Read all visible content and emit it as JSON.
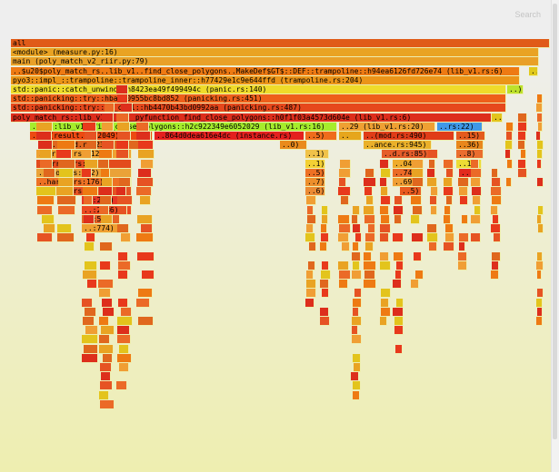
{
  "search": {
    "label": "Search"
  },
  "frames": [
    {
      "t": "all",
      "c": "#e05b18"
    },
    {
      "t": "<module> (measure.py:16)",
      "c": "#e9a323"
    },
    {
      "t": "main (poly_match_v2_riir.py:79)",
      "c": "#e9a028"
    },
    {
      "t": "..$u20$poly_match_rs..lib_v1..find_close_polygons..MakeDef$GT$::DEF::trampoline::h94ea6126fd726e74 (lib_v1.rs:6)",
      "c": "#ee7a13"
    },
    {
      "t": "..",
      "c": "#e1c91c"
    },
    {
      "t": "pyo3::impl_::trampoline::trampoline_inner::h77429e1c9e644ffd (trampoline.rs:204)",
      "c": "#eb9418"
    },
    {
      "t": "std::panic::catch_unwind::h8423ea49f499494c (panic.rs:140)",
      "c": "#efdb2a"
    },
    {
      "t": "..)",
      "c": "#bde12c"
    },
    {
      "t": "std::panicking::try::hba7c0955bc8bd852 (panicking.rs:451)",
      "c": "#ee5f1a"
    },
    {
      "t": "std::panicking::try::do_call::hb4470b43bd0992aa (panicking.rs:487)",
      "c": "#e6481c"
    },
    {
      "t": "poly_match_rs::lib_v1::_::__pyfunction_find_close_polygons::h0f1f03a4573d604e (lib_v1.rs:6)",
      "c": "#dd2e1c"
    },
    {
      "t": "..",
      "c": "#e3c41c"
    },
    {
      "t": "..rs::lib_v1::find_close_polygons::h2c922349e6052029 (lib_v1.rs:16)",
      "c": "#a6ec2c"
    },
    {
      "t": "..29 (lib_v1.rs:20)",
      "c": "#efa033"
    },
    {
      "t": "..rs:22)",
      "c": "#3f98e8"
    },
    {
      "t": "..a (result.rs:2049)",
      "c": "#ed4a12"
    },
    {
      "t": "..864d0dea616e4dc (instance.rs)",
      "c": "#e4201e"
    },
    {
      "t": "..5)",
      "c": "#ef6c1c"
    },
    {
      "t": "..",
      "c": "#e6a61c"
    },
    {
      "t": "..(mod.rs:490)",
      "c": "#e03c18"
    },
    {
      "t": "..15)",
      "c": "#e45a1d"
    },
    {
      "t": "..(mod.rs:232)",
      "c": "#e0671e"
    },
    {
      "t": "..0)",
      "c": "#e98a1c"
    },
    {
      "t": "..ance.rs:945)",
      "c": "#eab02a"
    },
    {
      "t": "..36)",
      "c": "#e8861c"
    },
    {
      "t": "..array.rs:912)",
      "c": "#efa132"
    },
    {
      "t": "..1)",
      "c": "#f0c24a"
    },
    {
      "t": "..d.rs:85)",
      "c": "#e55d2a"
    },
    {
      "t": "..8)",
      "c": "#ea6d2e"
    },
    {
      "t": "..array.rs:901)",
      "c": "#e34b1d"
    },
    {
      "t": "..1)",
      "c": "#f3d034"
    },
    {
      "t": "..04)",
      "c": "#efab2c"
    },
    {
      "t": "..1)",
      "c": "#eddc35"
    },
    {
      "t": "..(mod.rs:242)",
      "c": "#eaa238"
    },
    {
      "t": "..5)",
      "c": "#ee7124"
    },
    {
      "t": "..74)",
      "c": "#eb6a27"
    },
    {
      "t": "..)",
      "c": "#e32a1e"
    },
    {
      "t": "..hared.rs:176)",
      "c": "#ee7124"
    },
    {
      "t": "..7)",
      "c": "#ed8f2c"
    },
    {
      "t": "..69)",
      "c": "#f09e34"
    },
    {
      "t": "..hared.rs:53)",
      "c": "#e65323"
    },
    {
      "t": "..6)",
      "c": "#eb8a34"
    },
    {
      "t": "..5)",
      "c": "#e95a1f"
    },
    {
      "t": "..:292)",
      "c": "#e63724"
    },
    {
      "t": "..:2986)",
      "c": "#ec4a22"
    },
    {
      "t": "..:576)",
      "c": "#e66326"
    },
    {
      "t": "..:774)",
      "c": "#ef9f31"
    }
  ]
}
